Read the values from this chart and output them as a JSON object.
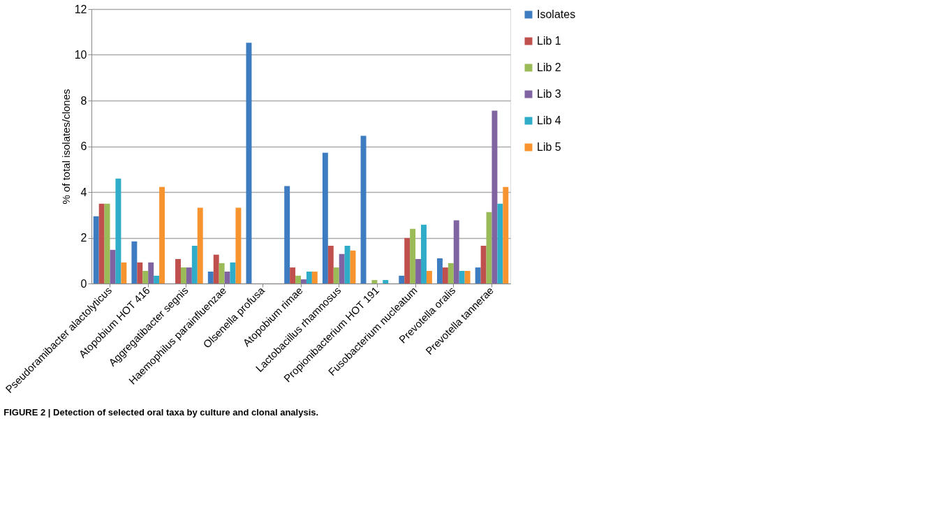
{
  "chart_data": {
    "type": "bar",
    "ylabel": "% of total isolates/clones",
    "categories": [
      "Pseudoramibacter alactolyticus",
      "Atopobium HOT 416",
      "Aggregatibacter segnis",
      "Haemophilus parainfluenzae",
      "Olsenella profusa",
      "Atopobium rimae",
      "Lactobacillus rhamnosus",
      "Propionibacterium HOT 191",
      "Fusobacterium nucleatum",
      "Prevotella oralis",
      "Prevotella tannerae"
    ],
    "series": [
      {
        "name": "Isolates",
        "color": "#3d7cc0",
        "values": [
          2.94,
          1.84,
          0,
          0.52,
          10.53,
          4.26,
          5.72,
          6.46,
          0.34,
          1.1,
          0.7
        ]
      },
      {
        "name": "Lib 1",
        "color": "#c0504d",
        "values": [
          3.49,
          0.92,
          1.07,
          1.26,
          0,
          0.7,
          1.65,
          0,
          1.99,
          0.7,
          1.65
        ]
      },
      {
        "name": "Lib 2",
        "color": "#9bbb59",
        "values": [
          3.49,
          0.55,
          0.7,
          0.89,
          0,
          0.34,
          0.7,
          0.15,
          2.39,
          0.89,
          3.12
        ]
      },
      {
        "name": "Lib 3",
        "color": "#8064a2",
        "values": [
          1.47,
          0.92,
          0.7,
          0.52,
          0,
          0.18,
          1.29,
          0,
          1.07,
          2.76,
          7.56
        ]
      },
      {
        "name": "Lib 4",
        "color": "#2eacc8",
        "values": [
          4.59,
          0.34,
          1.65,
          0.92,
          0,
          0.52,
          1.65,
          0.15,
          2.57,
          0.55,
          3.49
        ]
      },
      {
        "name": "Lib 5",
        "color": "#f7942f",
        "values": [
          0.92,
          4.22,
          3.31,
          3.31,
          0,
          0.52,
          1.44,
          0,
          0.55,
          0.55,
          4.22
        ]
      }
    ],
    "ylim": [
      0,
      12
    ],
    "yticks": [
      0,
      2,
      4,
      6,
      8,
      10,
      12
    ],
    "grid": "y",
    "legend": "right",
    "annotations": [
      "FIGURE 2 | Detection of selected oral taxa by culture and clonal analysis."
    ]
  }
}
